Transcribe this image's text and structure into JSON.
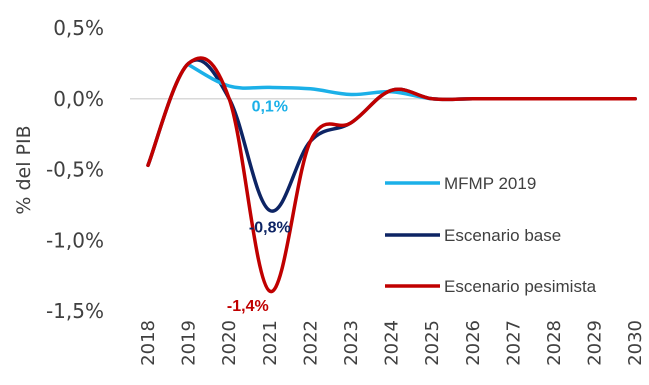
{
  "chart_data": {
    "type": "line",
    "title": "",
    "xlabel": "",
    "ylabel": "% del PIB",
    "ylim": [
      -1.5,
      0.5
    ],
    "yticks": [
      0.5,
      0.0,
      -0.5,
      -1.0,
      -1.5
    ],
    "ytick_labels": [
      "0,5%",
      "0,0%",
      "-0,5%",
      "-1,0%",
      "-1,5%"
    ],
    "x": [
      "2018",
      "2019",
      "2020",
      "2021",
      "2022",
      "2023",
      "2024",
      "2025",
      "2026",
      "2027",
      "2028",
      "2029",
      "2030"
    ],
    "grid": false,
    "legend_position": "right",
    "series": [
      {
        "name": "MFMP 2019",
        "color": "#1bb0e8",
        "values": [
          null,
          0.24,
          0.09,
          0.08,
          0.07,
          0.03,
          0.05,
          0.0,
          0.0,
          0.0,
          0.0,
          0.0,
          0.0
        ]
      },
      {
        "name": "Escenario base",
        "color": "#0d2464",
        "values": [
          -0.47,
          0.25,
          0.0,
          -0.79,
          -0.3,
          -0.17,
          0.06,
          0.0,
          0.0,
          0.0,
          0.0,
          0.0,
          0.0
        ]
      },
      {
        "name": "Escenario pesimista",
        "color": "#c00000",
        "values": [
          -0.47,
          0.25,
          0.0,
          -1.36,
          -0.3,
          -0.17,
          0.06,
          0.0,
          0.0,
          0.0,
          0.0,
          0.0,
          0.0
        ]
      }
    ],
    "annotations": [
      {
        "text": "0,1%",
        "series": 0,
        "x": "2021",
        "color": "#1bb0e8"
      },
      {
        "text": "-0,8%",
        "series": 1,
        "x": "2021",
        "color": "#0d2464"
      },
      {
        "text": "-1,4%",
        "series": 2,
        "x": "2021",
        "color": "#c00000"
      }
    ]
  }
}
